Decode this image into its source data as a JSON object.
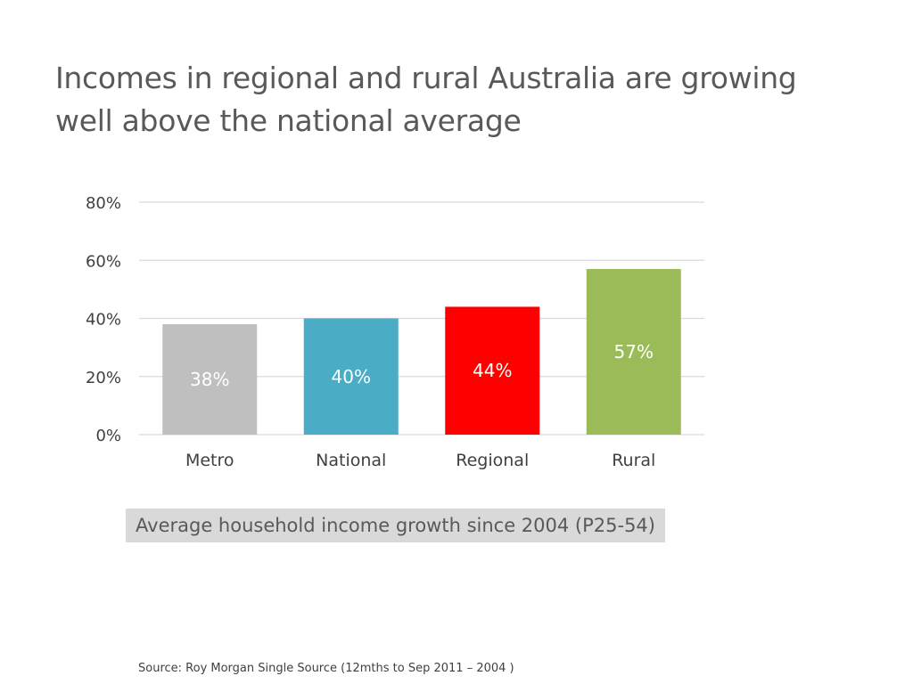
{
  "slide": {
    "title": "Incomes in regional and rural Australia are growing well above the national average",
    "caption": "Average household income growth since 2004 (P25-54)",
    "source": "Source:  Roy Morgan Single Source (12mths to Sep 2011 – 2004 )"
  },
  "chart_data": {
    "type": "bar",
    "categories": [
      "Metro",
      "National",
      "Regional",
      "Rural"
    ],
    "values": [
      38,
      40,
      44,
      57
    ],
    "data_labels": [
      "38%",
      "40%",
      "44%",
      "57%"
    ],
    "colors": [
      "#bfbfbf",
      "#4bacc6",
      "#ff0000",
      "#9bbb59"
    ],
    "label_colors": [
      "#ffffff",
      "#ffffff",
      "#ffffff",
      "#ffffff"
    ],
    "ylim": [
      0,
      80
    ],
    "yticks": [
      0,
      20,
      40,
      60,
      80
    ],
    "ytick_labels": [
      "0%",
      "20%",
      "40%",
      "60%",
      "80%"
    ],
    "grid": true,
    "gridline_color": "#d9d9d9",
    "legend": "none"
  }
}
